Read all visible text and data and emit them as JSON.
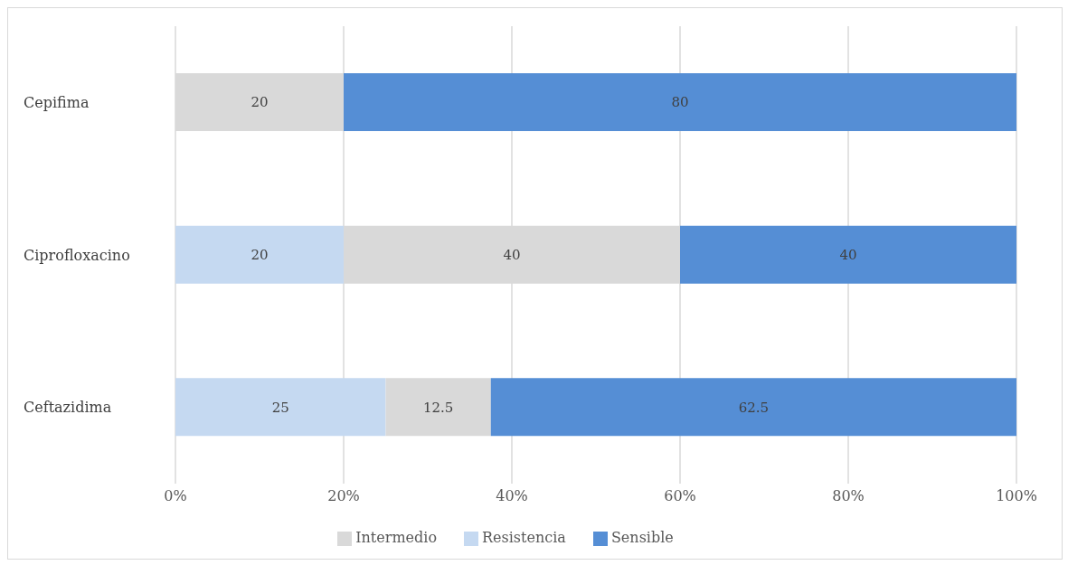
{
  "chart_data": {
    "type": "bar",
    "orientation": "horizontal",
    "stacked": true,
    "categories": [
      "Cepifima",
      "Ciprofloxacino",
      "Ceftazidima"
    ],
    "series": [
      {
        "name": "Resistencia",
        "color": "#c5d9f1",
        "values": [
          null,
          20,
          25
        ]
      },
      {
        "name": "Intermedio",
        "color": "#d9d9d9",
        "values": [
          20,
          40,
          12.5
        ]
      },
      {
        "name": "Sensible",
        "color": "#558ed5",
        "values": [
          80,
          40,
          62.5
        ]
      }
    ],
    "xlim": [
      0,
      100
    ],
    "xticks": [
      {
        "value": 0,
        "label": "0%"
      },
      {
        "value": 20,
        "label": "20%"
      },
      {
        "value": 40,
        "label": "40%"
      },
      {
        "value": 60,
        "label": "60%"
      },
      {
        "value": 80,
        "label": "80%"
      },
      {
        "value": 100,
        "label": "100%"
      }
    ],
    "grid": "x",
    "legend": "bottom",
    "data_labels": true
  }
}
